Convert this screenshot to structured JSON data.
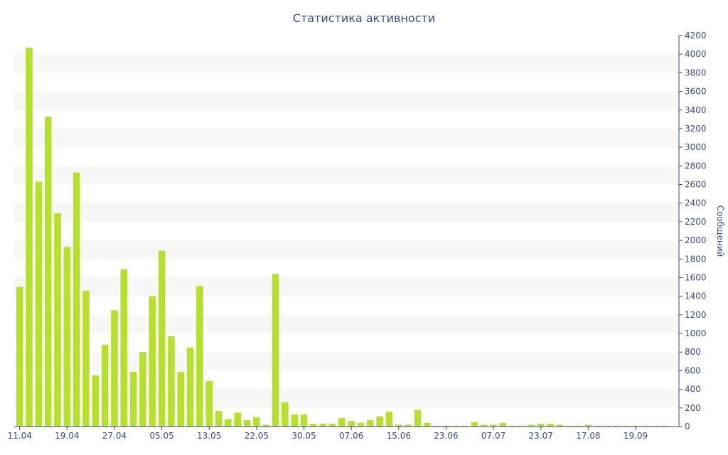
{
  "chart_data": {
    "type": "bar",
    "title": "Статистика активности",
    "xlabel": "",
    "ylabel": "Сообщений",
    "ylim": [
      0,
      4200
    ],
    "y_ticks": [
      0,
      200,
      400,
      600,
      800,
      1000,
      1200,
      1400,
      1600,
      1800,
      2000,
      2200,
      2400,
      2600,
      2800,
      3000,
      3200,
      3400,
      3600,
      3800,
      4000,
      4200
    ],
    "y_axis_position": "right",
    "x_tick_labels": [
      {
        "label": "11.04",
        "index": 0
      },
      {
        "label": "19.04",
        "index": 5
      },
      {
        "label": "27.04",
        "index": 10
      },
      {
        "label": "05.05",
        "index": 15
      },
      {
        "label": "13.05",
        "index": 20
      },
      {
        "label": "22.05",
        "index": 25
      },
      {
        "label": "30.05",
        "index": 30
      },
      {
        "label": "07.06",
        "index": 35
      },
      {
        "label": "15.06",
        "index": 40
      },
      {
        "label": "23.06",
        "index": 45
      },
      {
        "label": "07.07",
        "index": 50
      },
      {
        "label": "23.07",
        "index": 55
      },
      {
        "label": "17.08",
        "index": 60
      },
      {
        "label": "19.09",
        "index": 65
      }
    ],
    "values": [
      1500,
      4070,
      2630,
      3330,
      2290,
      1930,
      2730,
      1460,
      550,
      880,
      1250,
      1690,
      590,
      800,
      1400,
      1890,
      970,
      590,
      850,
      1510,
      490,
      170,
      80,
      150,
      70,
      100,
      20,
      1640,
      260,
      130,
      130,
      30,
      30,
      30,
      90,
      60,
      40,
      70,
      110,
      160,
      20,
      20,
      180,
      40,
      10,
      10,
      10,
      10,
      50,
      20,
      20,
      40,
      10,
      10,
      20,
      30,
      30,
      20,
      10,
      10,
      20,
      10,
      10,
      10,
      10,
      10,
      10,
      10,
      10,
      5
    ],
    "bar_color": "#b5e02c",
    "grid": "alternating-bands",
    "band_color": "#f7f7f7"
  }
}
